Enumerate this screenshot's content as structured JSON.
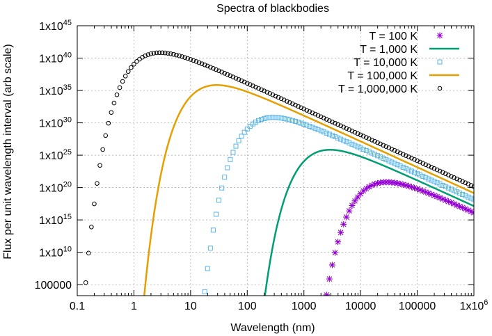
{
  "chart_data": {
    "type": "line",
    "title": "Spectra of blackbodies",
    "xlabel": "Wavelength (nm)",
    "ylabel": "Flux per unit wavelength interval (arb scale)",
    "x_scale": "log",
    "y_scale": "log",
    "xlim": [
      0.1,
      1000000
    ],
    "ylim_log10": [
      3.3,
      45
    ],
    "grid": true,
    "legend_position": "top-right",
    "x_ticks": [
      {
        "label": "0.1",
        "value": 0.1
      },
      {
        "label": "1",
        "value": 1
      },
      {
        "label": "10",
        "value": 10
      },
      {
        "label": "100",
        "value": 100
      },
      {
        "label": "1000",
        "value": 1000
      },
      {
        "label": "10000",
        "value": 10000
      },
      {
        "label": "100000",
        "value": 100000
      },
      {
        "label": "1x10",
        "sup": "6",
        "value": 1000000
      }
    ],
    "y_ticks": [
      {
        "label": "100000",
        "sup": "",
        "log10": 5
      },
      {
        "label": "1x10",
        "sup": "10",
        "log10": 10
      },
      {
        "label": "1x10",
        "sup": "15",
        "log10": 15
      },
      {
        "label": "1x10",
        "sup": "20",
        "log10": 20
      },
      {
        "label": "1x10",
        "sup": "25",
        "log10": 25
      },
      {
        "label": "1x10",
        "sup": "30",
        "log10": 30
      },
      {
        "label": "1x10",
        "sup": "35",
        "log10": 35
      },
      {
        "label": "1x10",
        "sup": "40",
        "log10": 40
      },
      {
        "label": "1x10",
        "sup": "45",
        "log10": 45
      }
    ],
    "series": [
      {
        "name": "T = 100 K",
        "temperature_K": 100,
        "style": "star",
        "color": "#9400d3"
      },
      {
        "name": "T = 1,000 K",
        "temperature_K": 1000,
        "style": "line",
        "color": "#009e73"
      },
      {
        "name": "T = 10,000 K",
        "temperature_K": 10000,
        "style": "square",
        "color": "#56b4e9"
      },
      {
        "name": "T = 100,000 K",
        "temperature_K": 100000,
        "style": "line",
        "color": "#e69f00"
      },
      {
        "name": "T = 1,000,000 K",
        "temperature_K": 1000000,
        "style": "circle",
        "color": "#000000"
      }
    ]
  }
}
